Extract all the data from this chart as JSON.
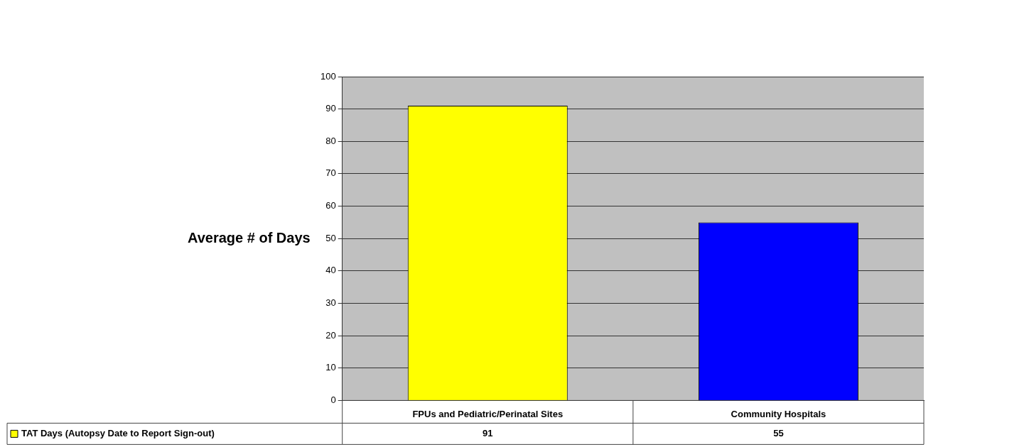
{
  "chart_data": {
    "type": "bar",
    "ylabel": "Average # of Days",
    "categories": [
      "FPUs and Pediatric/Perinatal Sites",
      "Community Hospitals"
    ],
    "series": [
      {
        "name": "TAT Days (Autopsy Date to Report Sign-out)",
        "color": "#ffff00",
        "colors": [
          "#ffff00",
          "#0000ff"
        ],
        "values": [
          91,
          55
        ]
      }
    ],
    "ylim": [
      0,
      100
    ],
    "yticks": [
      0,
      10,
      20,
      30,
      40,
      50,
      60,
      70,
      80,
      90,
      100
    ],
    "grid": "y",
    "data_labels": true,
    "legend": "bottom"
  }
}
